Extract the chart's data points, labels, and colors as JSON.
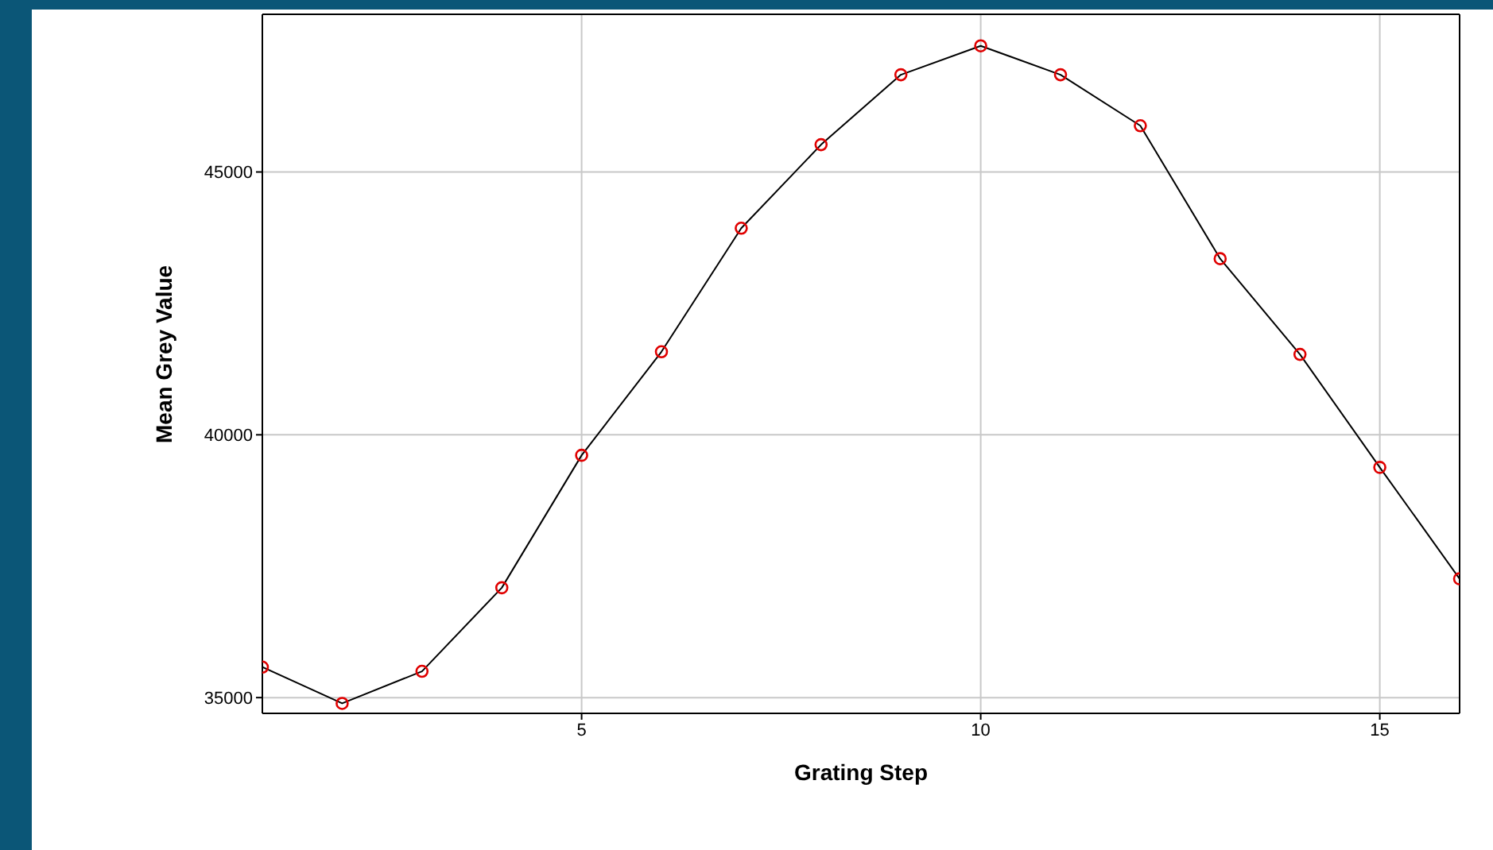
{
  "chart_data": {
    "type": "line",
    "xlabel": "Grating Step",
    "ylabel": "Mean Grey Value",
    "x": [
      1,
      2,
      3,
      4,
      5,
      6,
      7,
      8,
      9,
      10,
      11,
      12,
      13,
      14,
      15,
      16
    ],
    "series": [
      {
        "color": "#e00000",
        "values": [
          35580,
          34890,
          35500,
          37090,
          39610,
          41580,
          43930,
          45520,
          46850,
          47400,
          46850,
          45880,
          43350,
          41530,
          39380,
          37260
        ]
      }
    ],
    "xlim": [
      1,
      16
    ],
    "xticks": [
      5,
      10,
      15
    ],
    "ylim": [
      34700,
      48000
    ],
    "yticks": [
      35000,
      40000,
      45000
    ],
    "grid": true,
    "marker": "circle",
    "line_style": "solid"
  }
}
